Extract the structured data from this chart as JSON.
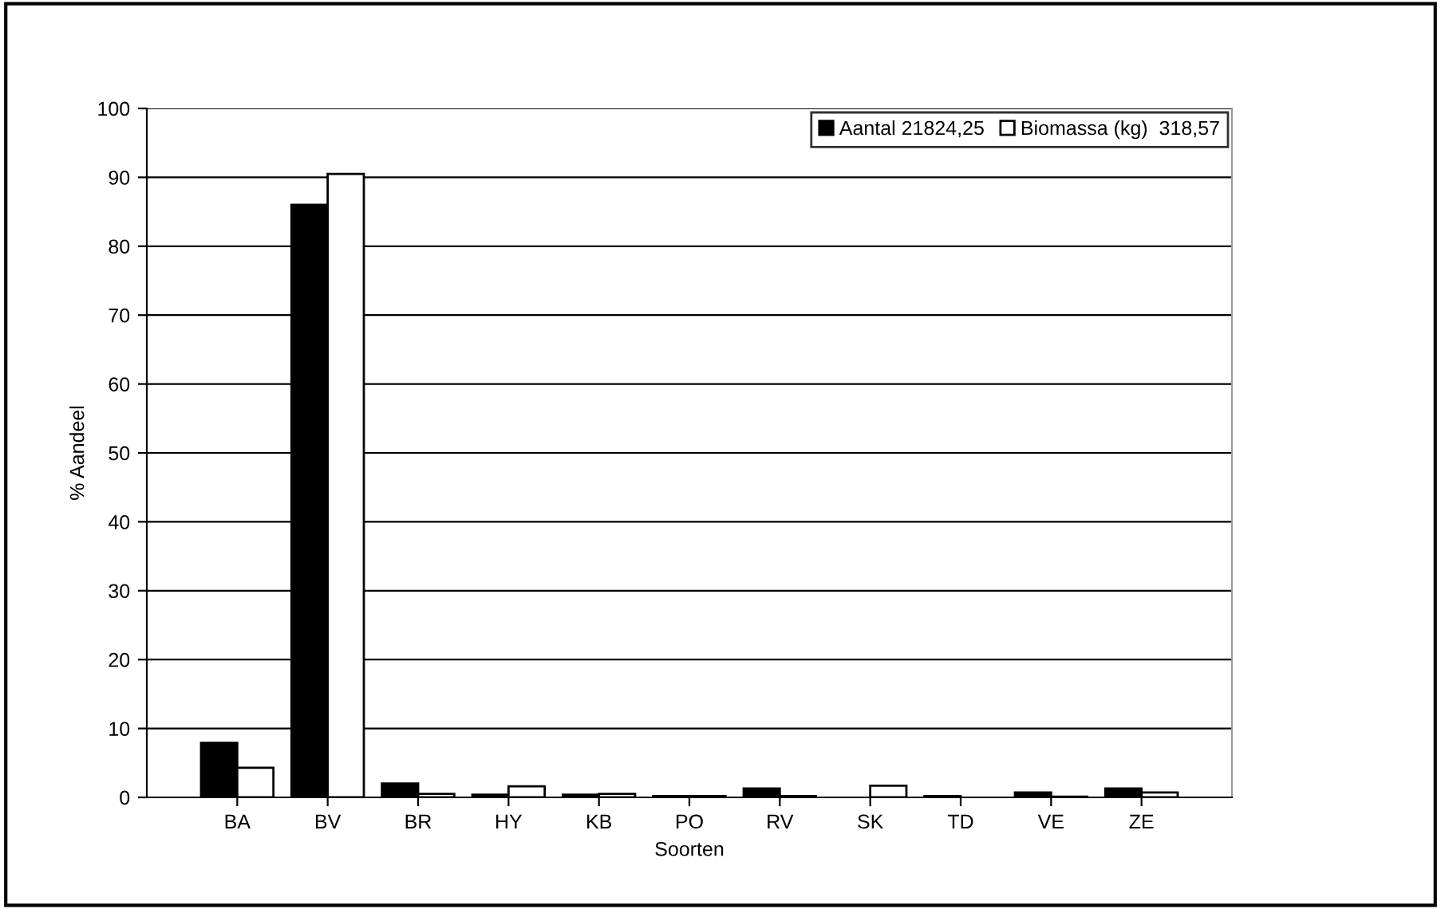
{
  "chart_data": {
    "type": "bar",
    "xlabel": "Soorten",
    "ylabel": "% Aandeel",
    "categories": [
      "BA",
      "BV",
      "BR",
      "HY",
      "KB",
      "PO",
      "RV",
      "SK",
      "TD",
      "VE",
      "ZE"
    ],
    "series": [
      {
        "name": "Aantal 21824,25",
        "color": "#000000",
        "values": [
          7.9,
          86,
          2.0,
          0.4,
          0.4,
          0.2,
          1.3,
          0,
          0.2,
          0.7,
          1.3
        ]
      },
      {
        "name": "Biomassa (kg)  318,57",
        "color": "#ffffff",
        "values": [
          4.3,
          90.5,
          0.5,
          1.6,
          0.5,
          0.2,
          0.2,
          1.7,
          0,
          0.1,
          0.7
        ]
      }
    ],
    "ylim": [
      0,
      100
    ],
    "yticks": [
      0,
      10,
      20,
      30,
      40,
      50,
      60,
      70,
      80,
      90,
      100
    ],
    "grid": "y",
    "legend": "top right"
  }
}
